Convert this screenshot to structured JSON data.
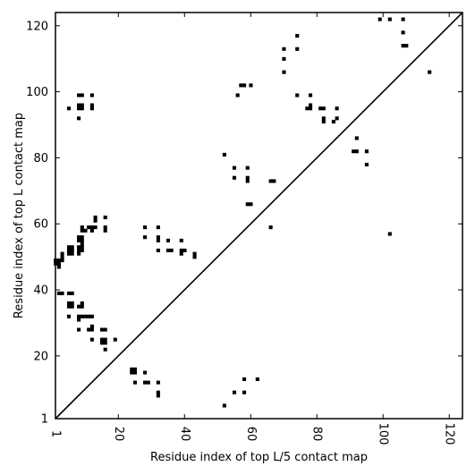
{
  "chart_data": {
    "type": "heatmap",
    "title": "",
    "xlabel": "Residue index of top L/5 contact map",
    "ylabel": "Residue index of top L contact map",
    "xlim": [
      1,
      124
    ],
    "ylim": [
      1,
      124
    ],
    "x_ticks": [
      {
        "value": 1,
        "label": "1"
      },
      {
        "value": 20,
        "label": "20"
      },
      {
        "value": 40,
        "label": "40"
      },
      {
        "value": 60,
        "label": "60"
      },
      {
        "value": 80,
        "label": "80"
      },
      {
        "value": 100,
        "label": "100"
      },
      {
        "value": 120,
        "label": "120"
      }
    ],
    "y_ticks": [
      {
        "value": 1,
        "label": "1"
      },
      {
        "value": 20,
        "label": "20"
      },
      {
        "value": 40,
        "label": "40"
      },
      {
        "value": 60,
        "label": "60"
      },
      {
        "value": 80,
        "label": "80"
      },
      {
        "value": 100,
        "label": "100"
      },
      {
        "value": 120,
        "label": "120"
      }
    ],
    "x_tick_rotation": "rotated",
    "diagonal": true,
    "cell_color": "#000000",
    "contacts": [
      [
        1,
        48
      ],
      [
        1,
        49
      ],
      [
        2,
        47
      ],
      [
        2,
        48
      ],
      [
        2,
        49
      ],
      [
        3,
        49
      ],
      [
        3,
        50
      ],
      [
        3,
        51
      ],
      [
        2,
        39
      ],
      [
        3,
        39
      ],
      [
        5,
        52
      ],
      [
        5,
        53
      ],
      [
        6,
        52
      ],
      [
        6,
        53
      ],
      [
        5,
        51
      ],
      [
        6,
        51
      ],
      [
        5,
        39
      ],
      [
        6,
        39
      ],
      [
        5,
        35
      ],
      [
        5,
        36
      ],
      [
        6,
        35
      ],
      [
        6,
        36
      ],
      [
        5,
        32
      ],
      [
        5,
        95
      ],
      [
        8,
        99
      ],
      [
        9,
        99
      ],
      [
        8,
        96
      ],
      [
        8,
        95
      ],
      [
        9,
        96
      ],
      [
        9,
        95
      ],
      [
        8,
        92
      ],
      [
        8,
        55
      ],
      [
        8,
        56
      ],
      [
        9,
        55
      ],
      [
        9,
        56
      ],
      [
        8,
        53
      ],
      [
        8,
        52
      ],
      [
        8,
        51
      ],
      [
        9,
        52
      ],
      [
        9,
        53
      ],
      [
        9,
        54
      ],
      [
        9,
        59
      ],
      [
        9,
        58
      ],
      [
        10,
        58
      ],
      [
        8,
        35
      ],
      [
        9,
        35
      ],
      [
        9,
        36
      ],
      [
        8,
        32
      ],
      [
        8,
        31
      ],
      [
        9,
        32
      ],
      [
        10,
        32
      ],
      [
        11,
        32
      ],
      [
        12,
        32
      ],
      [
        8,
        28
      ],
      [
        11,
        28
      ],
      [
        12,
        28
      ],
      [
        12,
        29
      ],
      [
        12,
        25
      ],
      [
        11,
        59
      ],
      [
        12,
        59
      ],
      [
        12,
        58
      ],
      [
        13,
        59
      ],
      [
        13,
        61
      ],
      [
        13,
        62
      ],
      [
        16,
        62
      ],
      [
        16,
        58
      ],
      [
        16,
        59
      ],
      [
        12,
        99
      ],
      [
        12,
        96
      ],
      [
        12,
        95
      ],
      [
        15,
        28
      ],
      [
        16,
        28
      ],
      [
        15,
        25
      ],
      [
        16,
        25
      ],
      [
        15,
        24
      ],
      [
        16,
        24
      ],
      [
        16,
        22
      ],
      [
        19,
        25
      ],
      [
        24,
        15
      ],
      [
        24,
        16
      ],
      [
        25,
        15
      ],
      [
        25,
        16
      ],
      [
        25,
        12
      ],
      [
        28,
        15
      ],
      [
        28,
        12
      ],
      [
        29,
        12
      ],
      [
        28,
        59
      ],
      [
        28,
        56
      ],
      [
        32,
        59
      ],
      [
        32,
        56
      ],
      [
        32,
        55
      ],
      [
        32,
        52
      ],
      [
        35,
        55
      ],
      [
        35,
        52
      ],
      [
        36,
        52
      ],
      [
        39,
        55
      ],
      [
        39,
        52
      ],
      [
        39,
        51
      ],
      [
        40,
        52
      ],
      [
        43,
        51
      ],
      [
        43,
        50
      ],
      [
        32,
        12
      ],
      [
        32,
        9
      ],
      [
        32,
        8
      ],
      [
        52,
        81
      ],
      [
        52,
        5
      ],
      [
        55,
        77
      ],
      [
        55,
        74
      ],
      [
        55,
        9
      ],
      [
        56,
        99
      ],
      [
        57,
        102
      ],
      [
        58,
        102
      ],
      [
        58,
        9
      ],
      [
        58,
        13
      ],
      [
        59,
        77
      ],
      [
        59,
        74
      ],
      [
        59,
        73
      ],
      [
        59,
        66
      ],
      [
        60,
        66
      ],
      [
        60,
        102
      ],
      [
        62,
        13
      ],
      [
        66,
        73
      ],
      [
        67,
        73
      ],
      [
        66,
        59
      ],
      [
        70,
        113
      ],
      [
        70,
        110
      ],
      [
        70,
        106
      ],
      [
        74,
        117
      ],
      [
        74,
        113
      ],
      [
        74,
        99
      ],
      [
        78,
        99
      ],
      [
        77,
        95
      ],
      [
        78,
        95
      ],
      [
        78,
        96
      ],
      [
        81,
        95
      ],
      [
        82,
        95
      ],
      [
        82,
        92
      ],
      [
        82,
        91
      ],
      [
        85,
        91
      ],
      [
        86,
        92
      ],
      [
        86,
        95
      ],
      [
        92,
        86
      ],
      [
        91,
        82
      ],
      [
        92,
        82
      ],
      [
        95,
        82
      ],
      [
        95,
        78
      ],
      [
        99,
        122
      ],
      [
        102,
        122
      ],
      [
        106,
        122
      ],
      [
        106,
        118
      ],
      [
        106,
        114
      ],
      [
        107,
        114
      ],
      [
        102,
        57
      ],
      [
        114,
        106
      ]
    ]
  }
}
